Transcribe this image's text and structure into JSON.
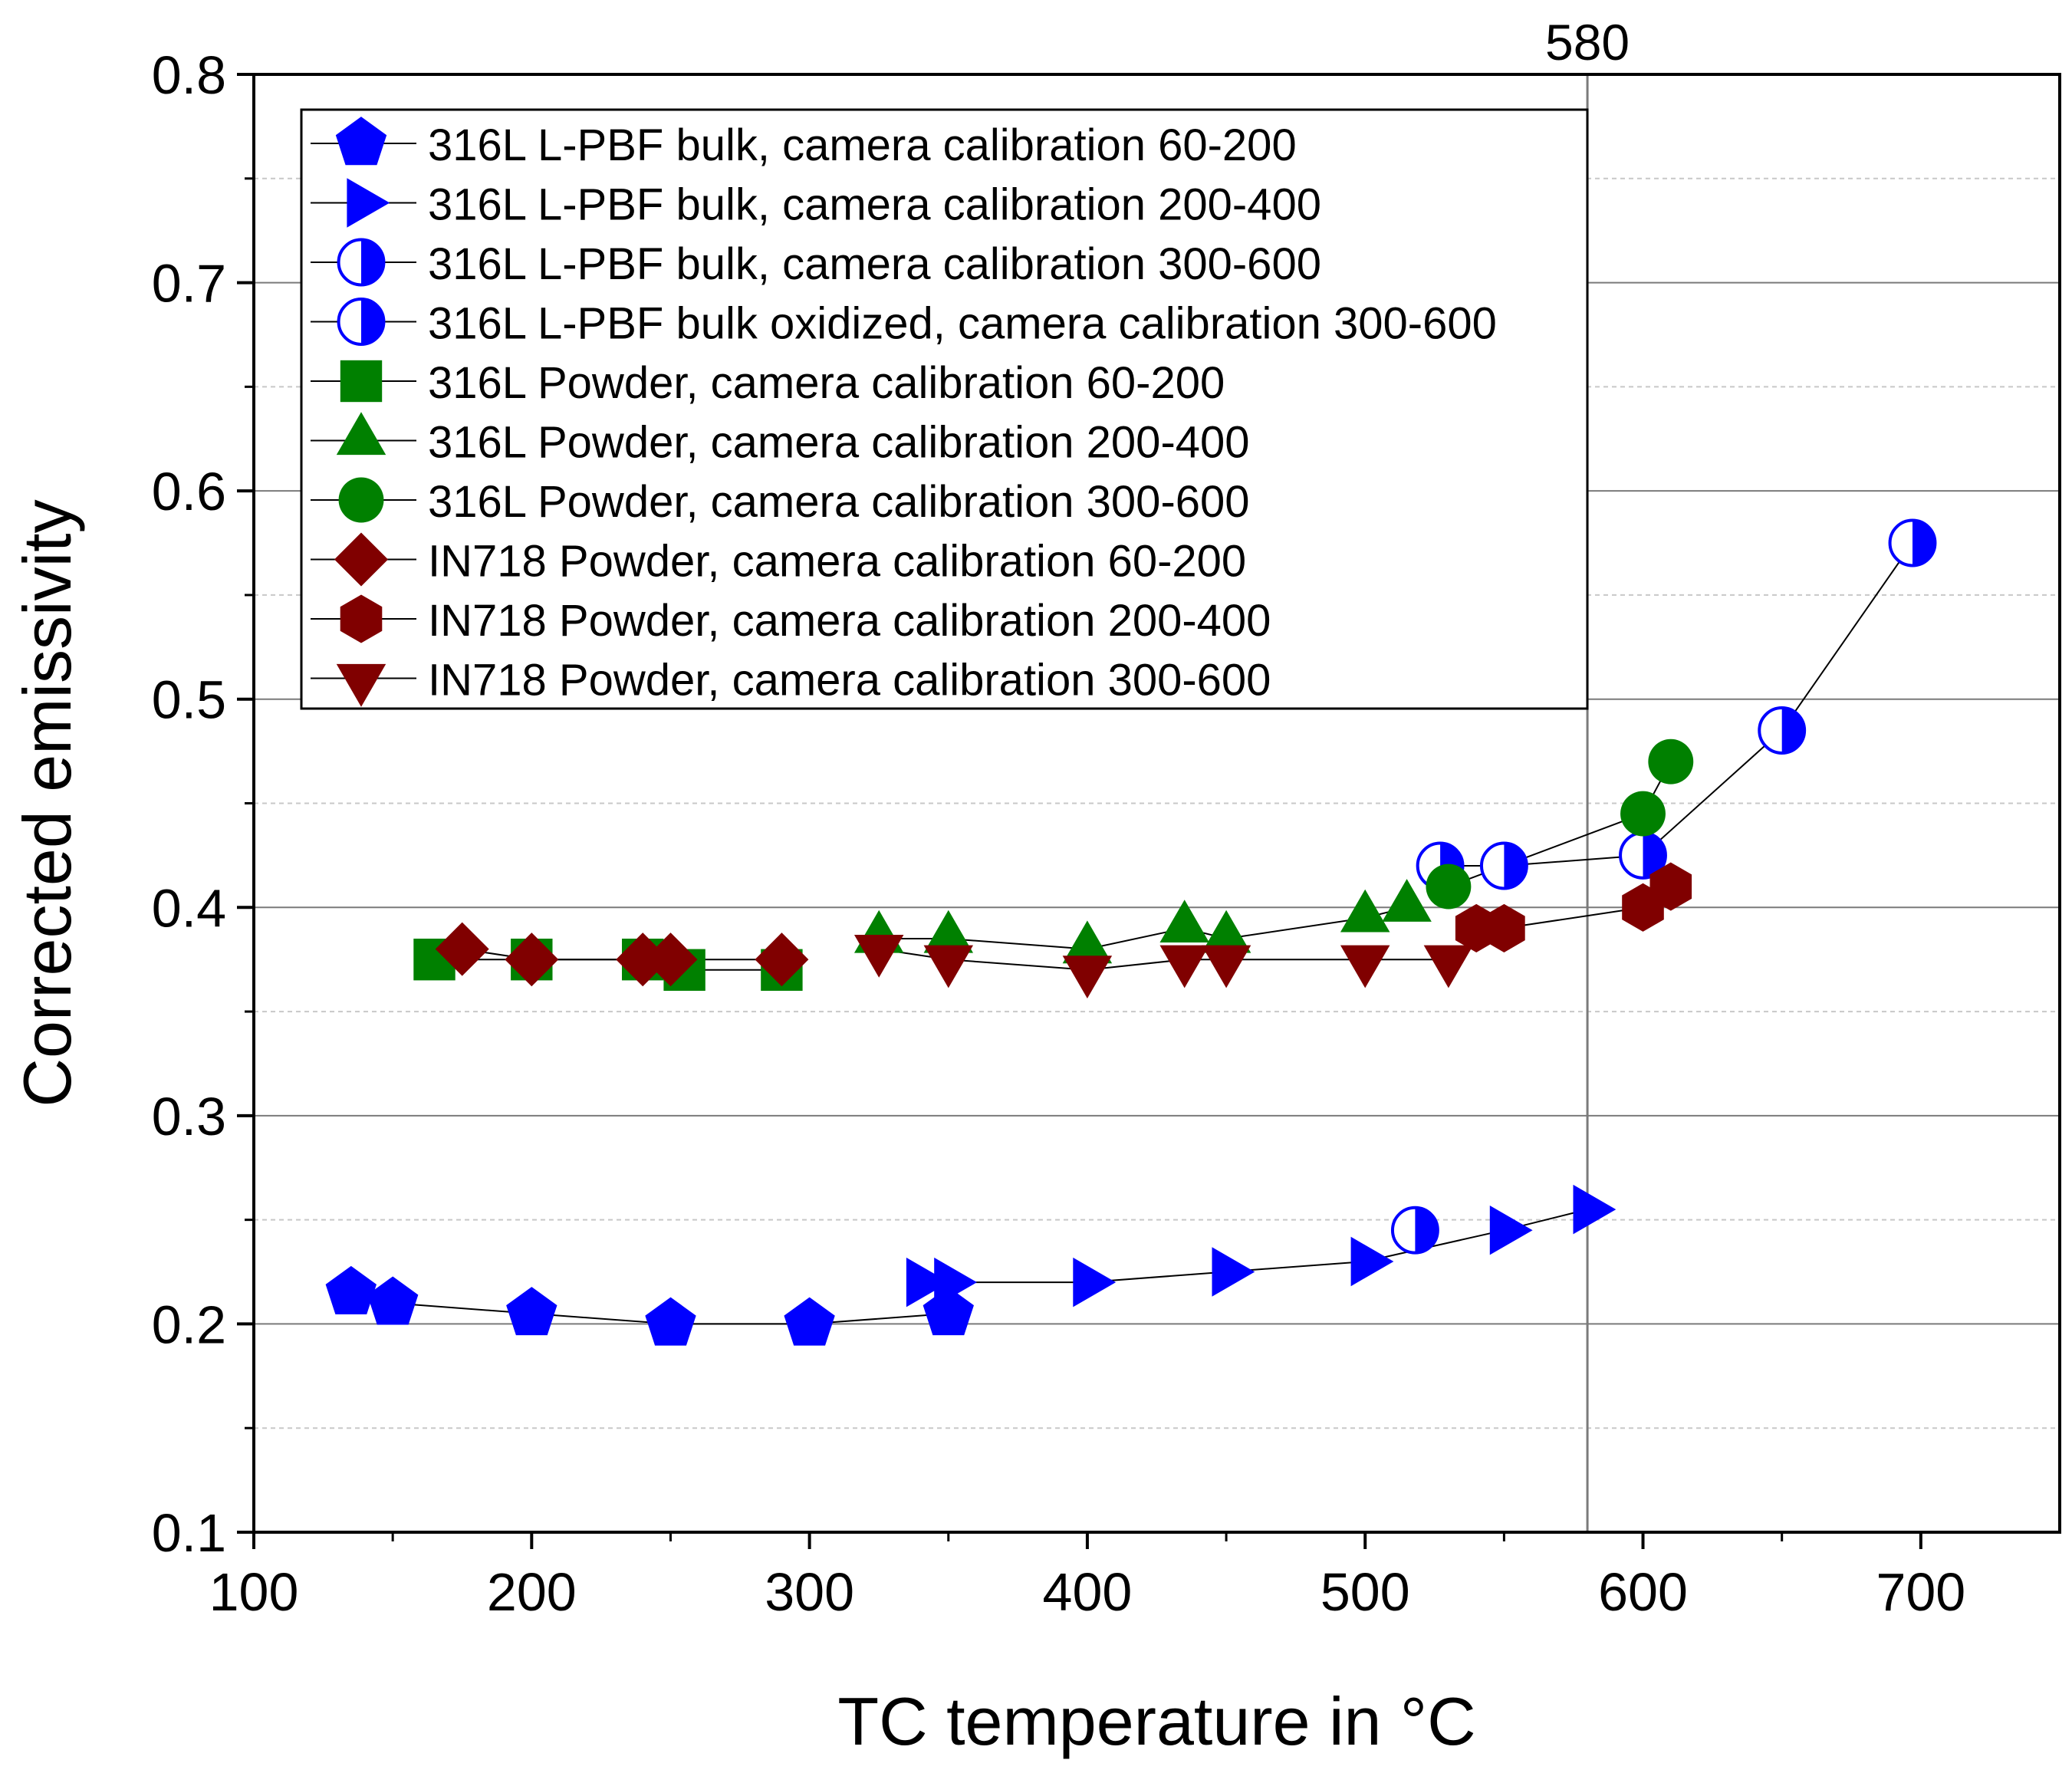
{
  "chart_data": {
    "type": "scatter",
    "title": "",
    "xlabel": "TC temperature in °C",
    "ylabel": "Corrected emissivity",
    "xlim": [
      100,
      750
    ],
    "ylim": [
      0.1,
      0.8
    ],
    "x_ticks": [
      100,
      200,
      300,
      400,
      500,
      600,
      700
    ],
    "y_ticks": [
      0.1,
      0.2,
      0.3,
      0.4,
      0.5,
      0.6,
      0.7,
      0.8
    ],
    "x_tick_labels": [
      "100",
      "200",
      "300",
      "400",
      "500",
      "600",
      "700"
    ],
    "y_tick_labels": [
      "0.1",
      "0.2",
      "0.3",
      "0.4",
      "0.5",
      "0.6",
      "0.7",
      "0.8"
    ],
    "y_minor_grid": [
      0.15,
      0.25,
      0.35,
      0.45,
      0.55,
      0.65,
      0.75
    ],
    "reference_line": {
      "x": 580,
      "label": "580"
    },
    "legend_position": "top-left",
    "colors": {
      "blue": "#0000ff",
      "green": "#008000",
      "darkred": "#800000",
      "axis": "#000000",
      "grid": "#999999"
    },
    "series": [
      {
        "name": "316L L-PBF bulk, camera calibration 60-200",
        "marker": "pentagon",
        "fill": "#0000ff",
        "x": [
          135,
          150,
          200,
          250,
          300,
          350
        ],
        "y": [
          0.215,
          0.21,
          0.205,
          0.2,
          0.2,
          0.205
        ]
      },
      {
        "name": "316L L-PBF bulk, camera calibration 200-400",
        "marker": "triangle-right",
        "fill": "#0000ff",
        "x": [
          340,
          350,
          400,
          450,
          500,
          550,
          580
        ],
        "y": [
          0.22,
          0.22,
          0.22,
          0.225,
          0.23,
          0.245,
          0.255
        ]
      },
      {
        "name": "316L L-PBF bulk, camera calibration 300-600",
        "marker": "half-circle",
        "fill": "#0000ff",
        "x": [
          518
        ],
        "y": [
          0.245
        ]
      },
      {
        "name": "316L L-PBF bulk oxidized, camera calibration 300-600",
        "marker": "half-circle",
        "fill": "#0000ff",
        "x": [
          527,
          550,
          600,
          650,
          697
        ],
        "y": [
          0.42,
          0.42,
          0.425,
          0.485,
          0.575
        ]
      },
      {
        "name": "316L Powder, camera calibration 60-200",
        "marker": "square",
        "fill": "#008000",
        "x": [
          165,
          200,
          240,
          255,
          290
        ],
        "y": [
          0.375,
          0.375,
          0.375,
          0.37,
          0.37
        ]
      },
      {
        "name": "316L Powder, camera calibration 200-400",
        "marker": "triangle-up",
        "fill": "#008000",
        "x": [
          325,
          350,
          400,
          435,
          450,
          500,
          515
        ],
        "y": [
          0.385,
          0.385,
          0.38,
          0.39,
          0.385,
          0.395,
          0.4
        ]
      },
      {
        "name": "316L Powder, camera calibration 300-600",
        "marker": "circle",
        "fill": "#008000",
        "x": [
          530,
          600,
          610
        ],
        "y": [
          0.41,
          0.445,
          0.47
        ]
      },
      {
        "name": "IN718 Powder, camera calibration 60-200",
        "marker": "diamond",
        "fill": "#800000",
        "x": [
          175,
          200,
          240,
          250,
          290
        ],
        "y": [
          0.38,
          0.375,
          0.375,
          0.375,
          0.375
        ]
      },
      {
        "name": "IN718 Powder, camera calibration 200-400",
        "marker": "hexagon",
        "fill": "#800000",
        "x": [
          540,
          550,
          600,
          610
        ],
        "y": [
          0.39,
          0.39,
          0.4,
          0.41
        ]
      },
      {
        "name": "IN718 Powder, camera calibration 300-600",
        "marker": "triangle-down",
        "fill": "#800000",
        "x": [
          325,
          350,
          400,
          435,
          450,
          500,
          530
        ],
        "y": [
          0.38,
          0.375,
          0.37,
          0.375,
          0.375,
          0.375,
          0.375
        ]
      }
    ]
  }
}
